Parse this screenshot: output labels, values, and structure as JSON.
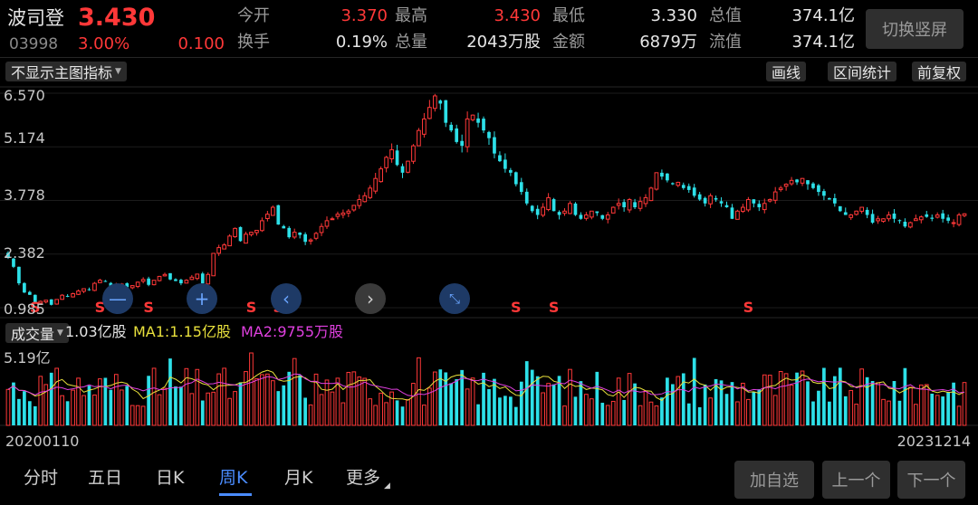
{
  "quote": {
    "name": "波司登",
    "price": "3.430",
    "code": "03998",
    "change_pct": "3.00%",
    "change": "0.100"
  },
  "stats": [
    {
      "label": "今开",
      "value": "3.370",
      "red": true
    },
    {
      "label": "最高",
      "value": "3.430",
      "red": true
    },
    {
      "label": "最低",
      "value": "3.330",
      "red": false
    },
    {
      "label": "总值",
      "value": "374.1亿",
      "red": false
    },
    {
      "label": "换手",
      "value": "0.19%",
      "red": false
    },
    {
      "label": "总量",
      "value": "2043万股",
      "red": false
    },
    {
      "label": "金额",
      "value": "6879万",
      "red": false
    },
    {
      "label": "流值",
      "value": "374.1亿",
      "red": false
    }
  ],
  "rotate_button": "切换竖屏",
  "main_indicator": "不显示主图指标",
  "tools": {
    "draw": "画线",
    "range_stats": "区间统计",
    "adjust": "前复权"
  },
  "y_axis": [
    "6.570",
    "5.174",
    "3.778",
    "2.382",
    "0.985"
  ],
  "signal_label": "S",
  "volume": {
    "selector": "成交量",
    "current": "1.03亿股",
    "ma1": "MA1:1.15亿股",
    "ma2": "MA2:9755万股",
    "max_label": "5.19亿",
    "ma1_color": "#e8e03c",
    "ma2_color": "#e040e0",
    "bar_up_color": "#ff3838",
    "bar_down_color": "#2de0e8"
  },
  "dates": {
    "start": "20200110",
    "end": "20231214"
  },
  "tabs": [
    "分时",
    "五日",
    "日K",
    "周K",
    "月K",
    "更多"
  ],
  "active_tab": "周K",
  "bottom_buttons": {
    "add": "加自选",
    "prev": "上一个",
    "next": "下一个"
  },
  "colors": {
    "up": "#ff3838",
    "down": "#2de0e8",
    "accent": "#4a8cff"
  },
  "chart_data": {
    "type": "candlestick",
    "period": "weekly",
    "ylim": [
      0.985,
      6.57
    ],
    "closes": [
      2.3,
      2.05,
      1.62,
      1.38,
      1.32,
      1.12,
      1.15,
      1.18,
      1.06,
      1.2,
      1.31,
      1.28,
      1.35,
      1.42,
      1.48,
      1.45,
      1.62,
      1.7,
      1.66,
      1.55,
      1.58,
      1.6,
      1.52,
      1.56,
      1.65,
      1.72,
      1.58,
      1.7,
      1.8,
      1.85,
      1.72,
      1.68,
      1.62,
      1.7,
      1.78,
      1.86,
      1.62,
      1.85,
      2.4,
      2.55,
      2.62,
      2.85,
      3.05,
      2.72,
      2.9,
      2.95,
      3.0,
      3.25,
      3.42,
      3.6,
      3.15,
      3.05,
      2.82,
      2.95,
      2.88,
      2.7,
      2.75,
      2.92,
      3.1,
      3.25,
      3.3,
      3.42,
      3.45,
      3.5,
      3.65,
      3.8,
      3.9,
      4.1,
      4.35,
      4.6,
      4.9,
      5.1,
      4.7,
      4.5,
      4.8,
      5.2,
      5.6,
      5.9,
      6.2,
      6.5,
      6.3,
      5.8,
      5.6,
      5.3,
      5.2,
      5.9,
      6.0,
      5.8,
      5.6,
      5.4,
      5.0,
      4.8,
      4.6,
      4.5,
      4.2,
      4.0,
      3.7,
      3.5,
      3.4,
      3.6,
      3.85,
      3.5,
      3.4,
      3.5,
      3.7,
      3.4,
      3.3,
      3.4,
      3.5,
      3.45,
      3.3,
      3.4,
      3.6,
      3.7,
      3.6,
      3.8,
      3.6,
      3.75,
      3.85,
      4.1,
      4.5,
      4.4,
      4.3,
      4.2,
      4.25,
      4.1,
      4.05,
      3.9,
      3.8,
      3.7,
      3.9,
      3.8,
      3.7,
      3.6,
      3.3,
      3.5,
      3.6,
      3.8,
      3.7,
      3.6,
      3.7,
      3.8,
      4.0,
      4.1,
      4.2,
      4.3,
      4.25,
      4.35,
      4.2,
      4.1,
      4.0,
      3.9,
      3.8,
      3.7,
      3.5,
      3.4,
      3.4,
      3.5,
      3.6,
      3.4,
      3.2,
      3.3,
      3.3,
      3.4,
      3.3,
      3.25,
      3.1,
      3.2,
      3.3,
      3.35,
      3.35,
      3.3,
      3.4,
      3.3,
      3.25,
      3.2,
      3.4,
      3.43
    ],
    "signals_at": [
      5,
      17,
      26,
      45,
      50,
      67,
      94,
      101,
      137
    ]
  }
}
